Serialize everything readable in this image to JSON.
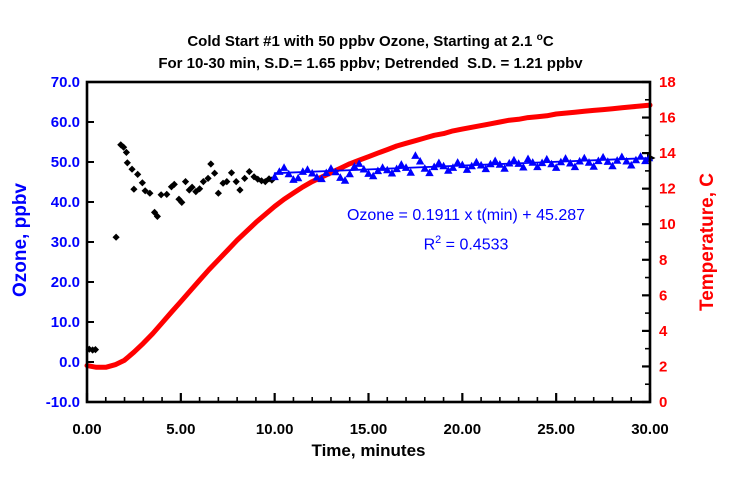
{
  "colors": {
    "ozone_blue": "#0000FF",
    "temperature_red": "#FF0000",
    "axis_black": "#000000"
  },
  "chart_data": {
    "type": "line+scatter",
    "title": {
      "pre": "Cold Start #1 with 50 ppbv Ozone, Starting at 2.1 ",
      "sup": "o",
      "post": "C"
    },
    "subtitle": "For 10-30 min, S.D.= 1.65 ppbv; Detrended  S.D. = 1.21 ppbv",
    "annotation": {
      "equation": "Ozone = 0.1911 x t(min) + 45.287",
      "r2_base": "R",
      "r2_sup": "2",
      "r2_rest": " = 0.4533",
      "color": "#0000FF"
    },
    "axes": {
      "x": {
        "label": "Time, minutes",
        "min": 0,
        "max": 30,
        "major_step": 5,
        "minor_step": 1,
        "tick_labels": [
          "0.00",
          "5.00",
          "10.00",
          "15.00",
          "20.00",
          "25.00",
          "30.00"
        ],
        "color": "#000000"
      },
      "left": {
        "label": "Ozone, ppbv",
        "min": -10,
        "max": 70,
        "major_step": 10,
        "tick_labels": [
          "-10.0",
          "0.0",
          "10.0",
          "20.0",
          "30.0",
          "40.0",
          "50.0",
          "60.0",
          "70.0"
        ],
        "color": "#0000FF"
      },
      "right": {
        "label": "Temperature, C",
        "min": 0,
        "max": 18,
        "major_step": 2,
        "minor_step": 1,
        "tick_labels": [
          "0",
          "2",
          "4",
          "6",
          "8",
          "10",
          "12",
          "14",
          "16",
          "18"
        ],
        "color": "#FF0000"
      }
    },
    "grid": false,
    "legend": "none",
    "series": [
      {
        "name": "temperature",
        "type": "line",
        "y_axis": "right",
        "color": "#FF0000",
        "stroke_width": 5,
        "points": [
          [
            0,
            2.05
          ],
          [
            0.5,
            1.95
          ],
          [
            1,
            1.95
          ],
          [
            1.5,
            2.1
          ],
          [
            2,
            2.35
          ],
          [
            2.5,
            2.8
          ],
          [
            3,
            3.3
          ],
          [
            3.5,
            3.85
          ],
          [
            4,
            4.45
          ],
          [
            4.5,
            5.05
          ],
          [
            5,
            5.65
          ],
          [
            5.5,
            6.25
          ],
          [
            6,
            6.85
          ],
          [
            6.5,
            7.45
          ],
          [
            7,
            8.0
          ],
          [
            7.5,
            8.55
          ],
          [
            8,
            9.1
          ],
          [
            8.5,
            9.6
          ],
          [
            9,
            10.1
          ],
          [
            9.5,
            10.55
          ],
          [
            10,
            11.0
          ],
          [
            10.5,
            11.4
          ],
          [
            11,
            11.75
          ],
          [
            11.5,
            12.1
          ],
          [
            12,
            12.4
          ],
          [
            12.5,
            12.65
          ],
          [
            13,
            12.9
          ],
          [
            13.5,
            13.15
          ],
          [
            14,
            13.4
          ],
          [
            14.5,
            13.6
          ],
          [
            15,
            13.8
          ],
          [
            15.5,
            14.0
          ],
          [
            16,
            14.2
          ],
          [
            16.5,
            14.4
          ],
          [
            17,
            14.55
          ],
          [
            17.5,
            14.7
          ],
          [
            18,
            14.85
          ],
          [
            18.5,
            15.0
          ],
          [
            19,
            15.1
          ],
          [
            19.5,
            15.25
          ],
          [
            20,
            15.35
          ],
          [
            20.5,
            15.45
          ],
          [
            21,
            15.55
          ],
          [
            21.5,
            15.65
          ],
          [
            22,
            15.75
          ],
          [
            22.5,
            15.85
          ],
          [
            23,
            15.9
          ],
          [
            23.5,
            16.0
          ],
          [
            24,
            16.05
          ],
          [
            24.5,
            16.1
          ],
          [
            25,
            16.2
          ],
          [
            25.5,
            16.25
          ],
          [
            26,
            16.3
          ],
          [
            26.5,
            16.35
          ],
          [
            27,
            16.4
          ],
          [
            27.5,
            16.45
          ],
          [
            28,
            16.5
          ],
          [
            28.5,
            16.55
          ],
          [
            29,
            16.6
          ],
          [
            29.5,
            16.65
          ],
          [
            30,
            16.7
          ]
        ]
      },
      {
        "name": "ozone-trendline",
        "type": "line",
        "y_axis": "left",
        "color": "#0000FF",
        "stroke_width": 1.8,
        "arrow_end": true,
        "arrow_color": "#000000",
        "points": [
          [
            10,
            47.2
          ],
          [
            30,
            51.0
          ]
        ]
      },
      {
        "name": "ozone-0-10min",
        "type": "scatter",
        "marker": "diamond",
        "y_axis": "left",
        "color": "#000000",
        "points": [
          [
            0.12,
            3.2
          ],
          [
            0.3,
            3.0
          ],
          [
            0.45,
            3.1
          ],
          [
            1.55,
            31.2
          ],
          [
            1.8,
            54.3
          ],
          [
            1.95,
            53.7
          ],
          [
            2.1,
            52.4
          ],
          [
            2.15,
            49.8
          ],
          [
            2.4,
            48.2
          ],
          [
            2.5,
            43.2
          ],
          [
            2.7,
            46.9
          ],
          [
            2.95,
            44.8
          ],
          [
            3.1,
            42.8
          ],
          [
            3.35,
            42.2
          ],
          [
            3.6,
            37.4
          ],
          [
            3.75,
            36.4
          ],
          [
            3.95,
            41.8
          ],
          [
            4.25,
            41.9
          ],
          [
            4.5,
            43.8
          ],
          [
            4.65,
            44.4
          ],
          [
            4.9,
            40.7
          ],
          [
            5.05,
            39.9
          ],
          [
            5.25,
            45.1
          ],
          [
            5.45,
            43.0
          ],
          [
            5.6,
            43.7
          ],
          [
            5.8,
            42.6
          ],
          [
            6.0,
            43.3
          ],
          [
            6.2,
            45.1
          ],
          [
            6.45,
            45.9
          ],
          [
            6.6,
            49.5
          ],
          [
            6.8,
            47.2
          ],
          [
            7.0,
            42.2
          ],
          [
            7.25,
            44.7
          ],
          [
            7.45,
            45.1
          ],
          [
            7.7,
            47.3
          ],
          [
            7.95,
            45.1
          ],
          [
            8.15,
            43.0
          ],
          [
            8.4,
            45.9
          ],
          [
            8.65,
            47.6
          ],
          [
            8.9,
            46.3
          ],
          [
            9.1,
            45.7
          ],
          [
            9.3,
            45.3
          ],
          [
            9.5,
            45.1
          ],
          [
            9.7,
            45.8
          ],
          [
            9.85,
            45.5
          ]
        ]
      },
      {
        "name": "ozone-10-30min",
        "type": "scatter",
        "marker": "triangle",
        "y_axis": "left",
        "color": "#0000FF",
        "points": [
          [
            10.0,
            46.3
          ],
          [
            10.25,
            47.6
          ],
          [
            10.5,
            48.6
          ],
          [
            10.75,
            47.0
          ],
          [
            11.0,
            45.6
          ],
          [
            11.25,
            46.0
          ],
          [
            11.5,
            47.6
          ],
          [
            11.75,
            48.1
          ],
          [
            12.0,
            47.2
          ],
          [
            12.25,
            46.2
          ],
          [
            12.5,
            45.8
          ],
          [
            12.75,
            47.3
          ],
          [
            13.0,
            48.4
          ],
          [
            13.25,
            47.5
          ],
          [
            13.5,
            46.1
          ],
          [
            13.75,
            45.4
          ],
          [
            14.0,
            47.0
          ],
          [
            14.25,
            48.9
          ],
          [
            14.5,
            49.6
          ],
          [
            14.75,
            48.2
          ],
          [
            15.0,
            47.1
          ],
          [
            15.25,
            46.5
          ],
          [
            15.5,
            47.8
          ],
          [
            15.75,
            48.6
          ],
          [
            16.0,
            48.0
          ],
          [
            16.25,
            47.2
          ],
          [
            16.5,
            48.3
          ],
          [
            16.75,
            49.4
          ],
          [
            17.0,
            48.6
          ],
          [
            17.25,
            47.4
          ],
          [
            17.5,
            51.6
          ],
          [
            17.75,
            50.2
          ],
          [
            18.0,
            48.4
          ],
          [
            18.25,
            47.3
          ],
          [
            18.5,
            48.8
          ],
          [
            18.75,
            49.8
          ],
          [
            19.0,
            49.0
          ],
          [
            19.25,
            47.9
          ],
          [
            19.5,
            48.6
          ],
          [
            19.75,
            49.9
          ],
          [
            20.0,
            49.3
          ],
          [
            20.25,
            48.1
          ],
          [
            20.5,
            49.0
          ],
          [
            20.75,
            50.0
          ],
          [
            21.0,
            49.2
          ],
          [
            21.25,
            48.3
          ],
          [
            21.5,
            49.5
          ],
          [
            21.75,
            50.3
          ],
          [
            22.0,
            49.4
          ],
          [
            22.25,
            48.4
          ],
          [
            22.5,
            49.7
          ],
          [
            22.75,
            50.5
          ],
          [
            23.0,
            49.6
          ],
          [
            23.25,
            48.7
          ],
          [
            23.5,
            50.8
          ],
          [
            23.75,
            49.9
          ],
          [
            24.0,
            48.8
          ],
          [
            24.25,
            49.8
          ],
          [
            24.5,
            50.7
          ],
          [
            24.75,
            49.5
          ],
          [
            25.0,
            48.6
          ],
          [
            25.25,
            50.0
          ],
          [
            25.5,
            50.9
          ],
          [
            25.75,
            49.7
          ],
          [
            26.0,
            48.8
          ],
          [
            26.25,
            50.2
          ],
          [
            26.5,
            51.0
          ],
          [
            26.75,
            49.9
          ],
          [
            27.0,
            48.9
          ],
          [
            27.25,
            50.3
          ],
          [
            27.5,
            51.2
          ],
          [
            27.75,
            50.1
          ],
          [
            28.0,
            49.0
          ],
          [
            28.25,
            50.4
          ],
          [
            28.5,
            51.3
          ],
          [
            28.75,
            50.2
          ],
          [
            29.0,
            49.2
          ],
          [
            29.25,
            50.5
          ],
          [
            29.5,
            51.4
          ],
          [
            29.75,
            50.3
          ],
          [
            29.95,
            51.0
          ]
        ]
      }
    ]
  }
}
